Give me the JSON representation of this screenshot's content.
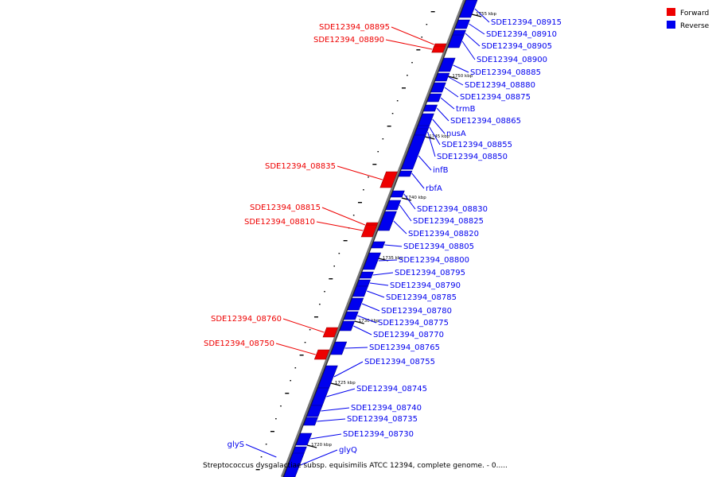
{
  "legend": {
    "forward": {
      "label": "Forward",
      "color": "#ee0000"
    },
    "reverse": {
      "label": "Reverse",
      "color": "#0000ee"
    }
  },
  "caption": "Streptococcus dysgalactiae subsp. equisimilis ATCC 12394, complete genome. - 0.....",
  "ticks": [
    "1755 kbp",
    "1750 kbp",
    "1745 kbp",
    "1740 kbp",
    "1735 kbp",
    "1730 kbp",
    "1725 kbp",
    "1720 kbp"
  ],
  "features": {
    "forward": [
      "SDE12394_08895",
      "SDE12394_08890",
      "SDE12394_08835",
      "SDE12394_08815",
      "SDE12394_08810",
      "SDE12394_08760",
      "SDE12394_08750"
    ],
    "reverse": [
      "SDE12394_08915",
      "SDE12394_08910",
      "SDE12394_08905",
      "SDE12394_08900",
      "SDE12394_08885",
      "SDE12394_08880",
      "SDE12394_08875",
      "trmB",
      "SDE12394_08865",
      "nusA",
      "SDE12394_08855",
      "SDE12394_08850",
      "infB",
      "rbfA",
      "SDE12394_08830",
      "SDE12394_08825",
      "SDE12394_08820",
      "SDE12394_08805",
      "SDE12394_08800",
      "SDE12394_08795",
      "SDE12394_08790",
      "SDE12394_08785",
      "SDE12394_08780",
      "SDE12394_08775",
      "SDE12394_08770",
      "SDE12394_08765",
      "SDE12394_08755",
      "SDE12394_08745",
      "SDE12394_08740",
      "SDE12394_08735",
      "SDE12394_08730",
      "glyS",
      "glyQ"
    ]
  }
}
